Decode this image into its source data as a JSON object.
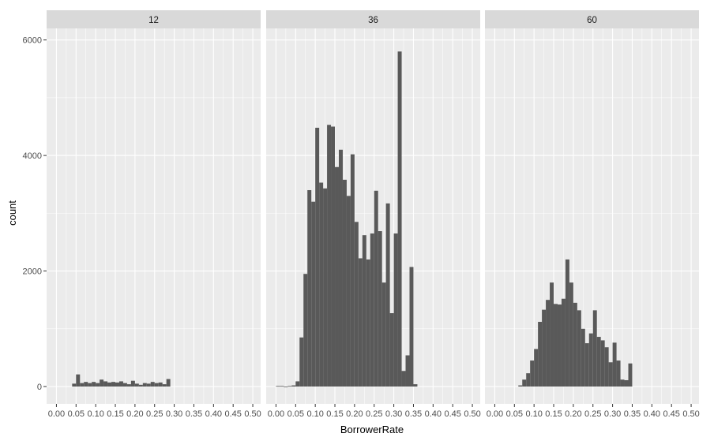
{
  "chart_data": {
    "type": "bar",
    "subtype": "faceted-histogram",
    "xlabel": "BorrowerRate",
    "ylabel": "count",
    "xlim": [
      -0.025,
      0.52
    ],
    "ylim": [
      -300,
      6200
    ],
    "binwidth": 0.01,
    "grid": true,
    "x_ticks": [
      "0.00",
      "0.05",
      "0.10",
      "0.15",
      "0.20",
      "0.25",
      "0.30",
      "0.35",
      "0.40",
      "0.45",
      "0.50"
    ],
    "y_ticks": [
      "0",
      "2000",
      "4000",
      "6000"
    ],
    "colors": {
      "bar": "#595959",
      "panel_bg": "#ebebeb",
      "grid": "#ffffff",
      "strip_bg": "#d9d9d9"
    },
    "facets": [
      {
        "label": "12",
        "bin_start": 0.04,
        "values": [
          50,
          210,
          60,
          80,
          60,
          80,
          60,
          120,
          90,
          70,
          80,
          70,
          90,
          60,
          40,
          100,
          50,
          30,
          60,
          50,
          80,
          60,
          70,
          40,
          130
        ]
      },
      {
        "label": "36",
        "bin_start": 0.0,
        "values": [
          10,
          10,
          0,
          10,
          20,
          90,
          850,
          1950,
          3400,
          3200,
          4480,
          3530,
          3430,
          4530,
          4500,
          3800,
          4100,
          3580,
          3300,
          4020,
          2850,
          2220,
          2620,
          2200,
          2650,
          3390,
          2690,
          1800,
          3170,
          1270,
          2650,
          5800,
          270,
          540,
          2070,
          40
        ]
      },
      {
        "label": "60",
        "bin_start": 0.06,
        "values": [
          20,
          120,
          230,
          450,
          650,
          1120,
          1330,
          1500,
          1800,
          1430,
          1420,
          1520,
          2200,
          1800,
          1450,
          1320,
          1000,
          750,
          920,
          1320,
          860,
          800,
          680,
          420,
          760,
          450,
          120,
          110,
          400
        ]
      }
    ]
  }
}
